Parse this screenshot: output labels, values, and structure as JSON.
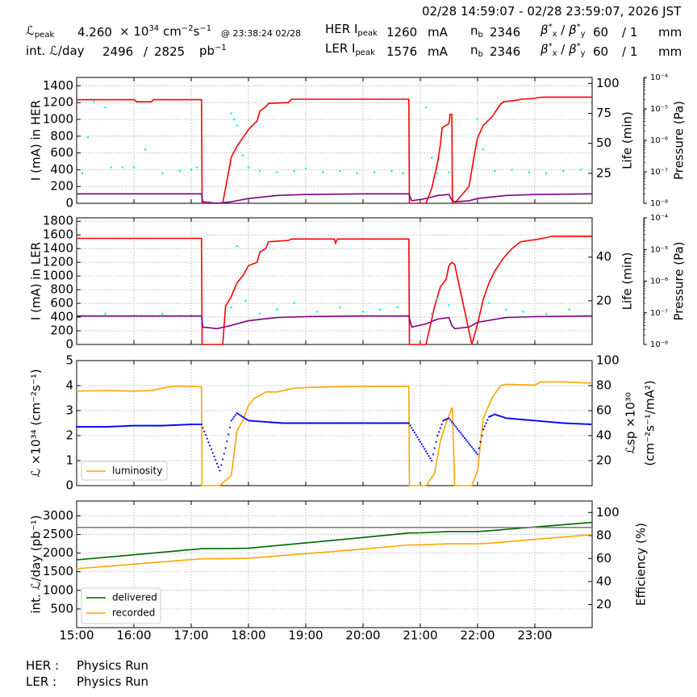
{
  "header": {
    "time_range": "02/28 14:59:07 - 02/28 23:59:07, 2026 JST",
    "lpeak_label": "peak",
    "lpeak_value": "4.260",
    "lpeak_unit_pre": "× 10",
    "lpeak_exp": "34",
    "lpeak_unit": "cm",
    "lpeak_unit_exp1": "−2",
    "lpeak_unit_s": "s",
    "lpeak_unit_exp2": "−1",
    "lpeak_time": "@ 23:38:24 02/28",
    "intl_label": "int. ",
    "intl_label2": "/day",
    "intl_value1": "2496",
    "intl_sep": "/",
    "intl_value2": "2825",
    "intl_unit": "pb",
    "intl_unit_exp": "−1",
    "her_label": "HER I",
    "ler_label": "LER I",
    "peak_sub": "peak",
    "her_current": "1260",
    "ler_current": "1576",
    "current_unit": "mA",
    "nb_label": "n",
    "nb_sub": "b",
    "her_nb": "2346",
    "ler_nb": "2346",
    "beta_label": "β*x / β*y",
    "her_beta_x": "60",
    "her_beta_sep": "/ 1",
    "ler_beta_x": "60",
    "ler_beta_sep": "/ 1",
    "beta_unit": "mm"
  },
  "footer": {
    "her_label": "HER :",
    "her_status": "Physics Run",
    "ler_label": "LER :",
    "ler_status": "Physics Run"
  },
  "colors": {
    "current": "#ff0000",
    "life": "#00ffff",
    "pressure": "#800080",
    "luminosity": "#ffa500",
    "specific_lum": "#0000ff",
    "delivered": "#006400",
    "recorded": "#ffa500",
    "efficiency": "#808080",
    "grid": "#999999"
  },
  "chart_data": [
    {
      "type": "line",
      "title": "",
      "xlabel": "",
      "ylabel": "I (mA) in HER",
      "y2label": "Life (min)",
      "y3label": "Pressure (Pa)",
      "xlim": [
        15.0,
        24.0
      ],
      "ylim": [
        0,
        1500
      ],
      "y2lim": [
        0,
        105
      ],
      "y3lim_log": [
        -8,
        -4
      ],
      "yticks": [
        0,
        200,
        400,
        600,
        800,
        1000,
        1200,
        1400
      ],
      "y2ticks": [
        25,
        50,
        75,
        100
      ],
      "y3ticks": [
        "10⁻⁸",
        "10⁻⁷",
        "10⁻⁶",
        "10⁻⁵",
        "10⁻⁴"
      ],
      "grid": true,
      "series": [
        {
          "name": "current",
          "axis": "left",
          "x": [
            15.0,
            16.0,
            16.05,
            16.3,
            16.35,
            17.0,
            17.18,
            17.19,
            17.55,
            17.7,
            17.8,
            17.9,
            18.0,
            18.15,
            18.2,
            18.3,
            18.35,
            18.7,
            18.75,
            20.0,
            20.8,
            20.81,
            21.1,
            21.2,
            21.3,
            21.35,
            21.38,
            21.5,
            21.52,
            21.55,
            21.56,
            21.59,
            21.6,
            21.85,
            21.95,
            22.0,
            22.1,
            22.25,
            22.4,
            22.45,
            22.7,
            22.75,
            23.0,
            23.05,
            23.15,
            24.0
          ],
          "y": [
            1235,
            1235,
            1210,
            1210,
            1235,
            1235,
            1235,
            0,
            0,
            550,
            680,
            780,
            880,
            980,
            1100,
            1150,
            1190,
            1200,
            1240,
            1240,
            1240,
            0,
            0,
            180,
            480,
            700,
            900,
            950,
            1060,
            1060,
            0,
            0,
            0,
            200,
            600,
            780,
            930,
            1030,
            1180,
            1210,
            1230,
            1240,
            1250,
            1260,
            1265,
            1265
          ]
        },
        {
          "name": "life",
          "axis": "right",
          "style": "dots",
          "x": [
            15.1,
            15.2,
            15.3,
            15.5,
            15.6,
            15.8,
            16.0,
            16.2,
            16.5,
            16.8,
            17.0,
            17.1,
            17.7,
            17.75,
            17.8,
            17.9,
            18.0,
            18.2,
            18.5,
            18.8,
            19.0,
            19.3,
            19.6,
            19.9,
            20.2,
            20.5,
            20.7,
            21.1,
            21.2,
            21.3,
            21.5,
            22.0,
            22.1,
            22.3,
            22.6,
            22.9,
            23.2,
            23.5,
            23.8
          ],
          "y": [
            25,
            55,
            85,
            80,
            30,
            30,
            30,
            45,
            25,
            27,
            28,
            30,
            75,
            70,
            65,
            40,
            30,
            27,
            26,
            27,
            29,
            26,
            27,
            25,
            26,
            27,
            25,
            80,
            38,
            25,
            26,
            70,
            45,
            27,
            28,
            26,
            25,
            27,
            28
          ]
        },
        {
          "name": "pressure_log",
          "axis": "pressure",
          "x": [
            15.0,
            17.18,
            17.2,
            17.45,
            17.7,
            18.0,
            18.5,
            19.0,
            20.0,
            20.8,
            20.85,
            21.1,
            21.3,
            21.5,
            21.55,
            21.6,
            21.85,
            22.0,
            22.5,
            23.0,
            24.0
          ],
          "y": [
            -7.7,
            -7.7,
            -7.95,
            -8.0,
            -7.95,
            -7.85,
            -7.75,
            -7.72,
            -7.7,
            -7.7,
            -7.92,
            -7.85,
            -7.75,
            -7.72,
            -7.9,
            -7.95,
            -7.92,
            -7.85,
            -7.75,
            -7.72,
            -7.7
          ]
        }
      ]
    },
    {
      "type": "line",
      "title": "",
      "xlabel": "",
      "ylabel": "I (mA) in LER",
      "y2label": "Life (min)",
      "y3label": "Pressure (Pa)",
      "xlim": [
        15.0,
        24.0
      ],
      "ylim": [
        0,
        1850
      ],
      "y2lim": [
        0,
        58
      ],
      "y3lim_log": [
        -8,
        -4
      ],
      "yticks": [
        0,
        200,
        400,
        600,
        800,
        1000,
        1200,
        1400,
        1600,
        1800
      ],
      "y2ticks": [
        20,
        40
      ],
      "y3ticks": [
        "10⁻⁸",
        "10⁻⁷",
        "10⁻⁶",
        "10⁻⁵",
        "10⁻⁴"
      ],
      "grid": true,
      "series": [
        {
          "name": "current",
          "axis": "left",
          "x": [
            15.0,
            17.18,
            17.19,
            17.55,
            17.6,
            17.7,
            17.8,
            17.9,
            18.0,
            18.15,
            18.2,
            18.3,
            18.35,
            18.5,
            18.7,
            18.75,
            19.5,
            19.52,
            19.55,
            20.0,
            20.8,
            20.81,
            21.1,
            21.25,
            21.35,
            21.45,
            21.5,
            21.55,
            21.6,
            21.9,
            22.0,
            22.1,
            22.2,
            22.3,
            22.45,
            22.6,
            22.75,
            22.9,
            23.0,
            23.2,
            23.3,
            24.0
          ],
          "y": [
            1550,
            1550,
            0,
            0,
            560,
            700,
            900,
            1000,
            1150,
            1200,
            1350,
            1400,
            1500,
            1510,
            1520,
            1540,
            1540,
            1480,
            1540,
            1540,
            1540,
            0,
            0,
            560,
            840,
            950,
            1150,
            1200,
            1170,
            0,
            300,
            660,
            900,
            1070,
            1260,
            1400,
            1500,
            1520,
            1530,
            1560,
            1580,
            1580
          ]
        },
        {
          "name": "life",
          "axis": "right",
          "style": "dots",
          "x": [
            15.1,
            15.5,
            16.0,
            16.5,
            17.0,
            17.7,
            17.8,
            17.95,
            18.2,
            18.5,
            18.8,
            19.2,
            19.6,
            20.0,
            20.3,
            20.6,
            21.2,
            21.3,
            21.5,
            22.2,
            22.5,
            22.8,
            23.2,
            23.6
          ],
          "y": [
            13,
            14,
            13,
            14,
            13,
            17,
            45,
            20,
            14,
            16,
            19,
            15,
            17,
            15,
            16,
            17,
            14,
            21,
            18,
            19,
            16,
            15,
            14,
            16
          ]
        },
        {
          "name": "pressure_log",
          "axis": "pressure",
          "x": [
            15.0,
            17.18,
            17.2,
            17.45,
            17.7,
            18.0,
            18.5,
            19.0,
            20.0,
            20.8,
            20.85,
            21.1,
            21.3,
            21.5,
            21.55,
            21.6,
            21.85,
            22.0,
            22.5,
            23.0,
            24.0
          ],
          "y": [
            -7.1,
            -7.1,
            -7.45,
            -7.5,
            -7.4,
            -7.25,
            -7.15,
            -7.12,
            -7.1,
            -7.1,
            -7.45,
            -7.35,
            -7.2,
            -7.15,
            -7.4,
            -7.5,
            -7.45,
            -7.3,
            -7.15,
            -7.12,
            -7.1
          ]
        }
      ]
    },
    {
      "type": "line",
      "title": "",
      "xlabel": "",
      "ylabel": "ℒ ×10³⁴ (cm⁻²s⁻¹)",
      "y2label": "ℒsp ×10³⁰ (cm⁻²s⁻¹/mA²)",
      "xlim": [
        15.0,
        24.0
      ],
      "ylim": [
        0,
        5
      ],
      "y2lim": [
        0,
        100
      ],
      "yticks": [
        0,
        1,
        2,
        3,
        4,
        5
      ],
      "y2ticks": [
        20,
        40,
        60,
        80,
        100
      ],
      "grid": true,
      "legend": "lower-left",
      "series": [
        {
          "name": "luminosity",
          "axis": "left",
          "x": [
            15.0,
            15.5,
            16.0,
            16.3,
            16.6,
            16.8,
            17.0,
            17.18,
            17.19,
            17.5,
            17.7,
            17.8,
            17.9,
            18.0,
            18.1,
            18.2,
            18.3,
            18.5,
            18.8,
            19.0,
            19.5,
            20.0,
            20.8,
            20.81,
            21.1,
            21.25,
            21.35,
            21.45,
            21.55,
            21.56,
            21.6,
            21.9,
            22.0,
            22.1,
            22.25,
            22.4,
            22.5,
            23.0,
            23.1,
            23.5,
            24.0
          ],
          "y": [
            3.78,
            3.8,
            3.78,
            3.8,
            3.95,
            3.98,
            3.97,
            3.95,
            0,
            0,
            0.4,
            2.2,
            2.6,
            3.2,
            3.5,
            3.6,
            3.75,
            3.75,
            3.9,
            3.92,
            3.95,
            3.97,
            3.97,
            0,
            0,
            0.5,
            1.8,
            2.5,
            3.1,
            3.1,
            0,
            0,
            0.6,
            2.7,
            3.5,
            4.0,
            4.05,
            4.02,
            4.15,
            4.15,
            4.1
          ]
        },
        {
          "name": "specific",
          "axis": "right",
          "x": [
            15.0,
            15.5,
            16.0,
            16.5,
            17.0,
            17.18,
            17.5,
            17.6,
            17.7,
            17.8,
            17.9,
            18.0,
            18.3,
            18.6,
            19.0,
            19.5,
            20.0,
            20.8,
            21.2,
            21.3,
            21.4,
            21.5,
            22.0,
            22.1,
            22.2,
            22.3,
            22.5,
            23.0,
            23.5,
            24.0
          ],
          "y": [
            47,
            47,
            48,
            48,
            49,
            49,
            12,
            30,
            52,
            58,
            55,
            52,
            51,
            50,
            50,
            50,
            50,
            50,
            20,
            40,
            52,
            54,
            25,
            45,
            55,
            57,
            54,
            52,
            50,
            49
          ]
        }
      ]
    },
    {
      "type": "line",
      "title": "",
      "xlabel": "",
      "ylabel": "int. ℒ/day (pb⁻¹)",
      "y2label": "Efficiency (%)",
      "xlim": [
        15.0,
        24.0
      ],
      "ylim": [
        0,
        3400
      ],
      "y2lim": [
        0,
        110
      ],
      "yticks": [
        500,
        1000,
        1500,
        2000,
        2500,
        3000
      ],
      "xticks": [
        "15:00",
        "16:00",
        "17:00",
        "18:00",
        "19:00",
        "20:00",
        "21:00",
        "22:00",
        "23:00"
      ],
      "y2ticks": [
        20,
        40,
        60,
        80,
        100
      ],
      "grid": true,
      "legend": "lower-left",
      "series": [
        {
          "name": "delivered",
          "axis": "left",
          "x": [
            15.0,
            17.2,
            17.6,
            18.0,
            20.0,
            20.8,
            21.0,
            21.5,
            22.0,
            22.2,
            24.0
          ],
          "y": [
            1820,
            2120,
            2120,
            2130,
            2420,
            2540,
            2545,
            2580,
            2580,
            2600,
            2825
          ]
        },
        {
          "name": "recorded",
          "axis": "left",
          "x": [
            15.0,
            17.2,
            17.6,
            18.0,
            20.0,
            20.8,
            21.0,
            21.5,
            22.0,
            22.2,
            24.0
          ],
          "y": [
            1580,
            1850,
            1850,
            1860,
            2110,
            2220,
            2222,
            2250,
            2250,
            2265,
            2496
          ]
        },
        {
          "name": "efficiency",
          "axis": "right",
          "x": [
            15.0,
            17.0,
            20.0,
            24.0
          ],
          "y": [
            87,
            87,
            87,
            87
          ]
        }
      ]
    }
  ],
  "legend": {
    "lum": "luminosity",
    "delivered": "delivered",
    "recorded": "recorded"
  }
}
